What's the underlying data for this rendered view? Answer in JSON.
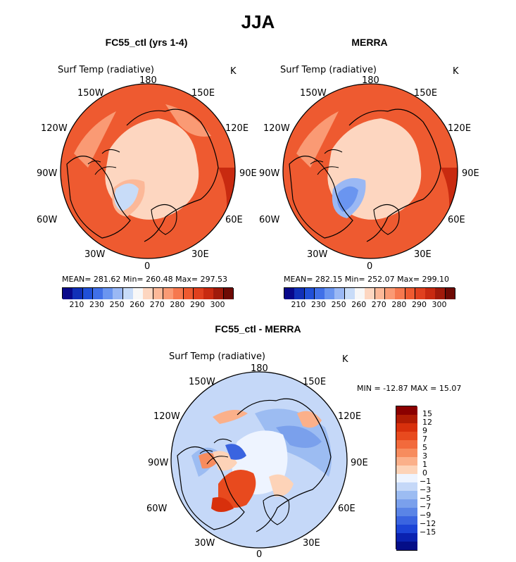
{
  "title": "JJA",
  "panels": [
    {
      "id": "model",
      "title": "FC55_ctl (yrs 1-4)",
      "variable": "Surf Temp (radiative)",
      "units": "K",
      "stats": "MEAN= 281.62   Min= 260.48   Max= 297.53",
      "lon_labels": [
        "180",
        "150E",
        "120E",
        "90E",
        "60E",
        "30E",
        "0",
        "30W",
        "60W",
        "90W",
        "120W",
        "150W"
      ]
    },
    {
      "id": "merra",
      "title": "MERRA",
      "variable": "Surf Temp (radiative)",
      "units": "K",
      "stats": "MEAN= 282.15   Min= 252.07   Max= 299.10",
      "lon_labels": [
        "180",
        "150E",
        "120E",
        "90E",
        "60E",
        "30E",
        "0",
        "30W",
        "60W",
        "90W",
        "120W",
        "150W"
      ]
    },
    {
      "id": "diff",
      "title": "FC55_ctl - MERRA",
      "variable": "Surf Temp (radiative)",
      "units": "K",
      "stats": "MIN = -12.87 MAX =  15.07",
      "lon_labels": [
        "180",
        "150E",
        "120E",
        "90E",
        "60E",
        "30E",
        "0",
        "30W",
        "60W",
        "90W",
        "120W",
        "150W"
      ]
    }
  ],
  "colorbar_horizontal": {
    "colors": [
      "#08088a",
      "#1030b8",
      "#2050d8",
      "#4070e8",
      "#6a95f0",
      "#9ab8f4",
      "#c8dcf8",
      "#f7f7f7",
      "#fdd6c0",
      "#fcb898",
      "#fa9a74",
      "#f6784e",
      "#ee5a30",
      "#e0401e",
      "#c82a10",
      "#a01a0a",
      "#6e0a04"
    ],
    "tick_labels": [
      "210",
      "230",
      "250",
      "260",
      "270",
      "280",
      "290",
      "300"
    ]
  },
  "colorbar_vertical": {
    "colors": [
      "#8b0000",
      "#b01c04",
      "#d8300c",
      "#e84a1e",
      "#f26a3c",
      "#f78c5e",
      "#fbb08a",
      "#fdd3b8",
      "#eef4ff",
      "#c5d8f8",
      "#9cbcf2",
      "#7aa0ec",
      "#5a84e6",
      "#3a64e0",
      "#1c44d6",
      "#0a22b0",
      "#040e88"
    ],
    "tick_labels": [
      "15",
      "12",
      "9",
      "7",
      "5",
      "3",
      "1",
      "0",
      "-1",
      "-3",
      "-5",
      "-7",
      "-9",
      "-12",
      "-15"
    ]
  }
}
